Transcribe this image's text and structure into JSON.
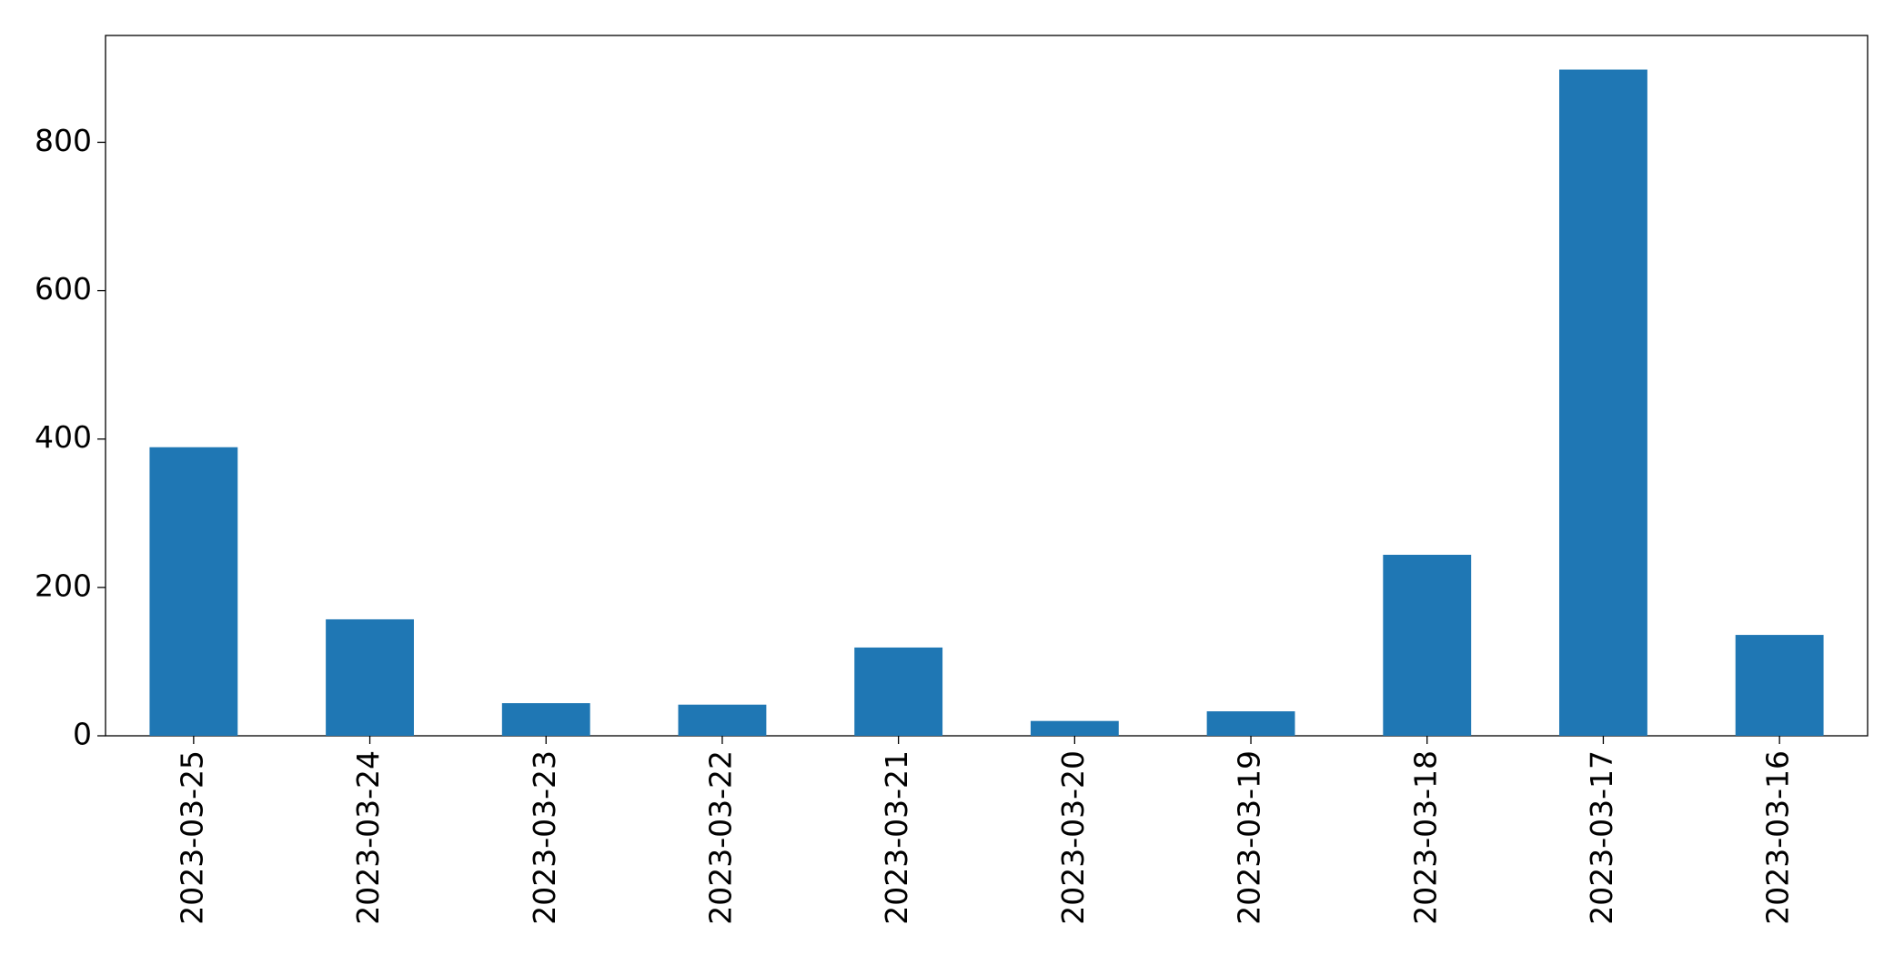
{
  "chart_data": {
    "type": "bar",
    "categories": [
      "2023-03-25",
      "2023-03-24",
      "2023-03-23",
      "2023-03-22",
      "2023-03-21",
      "2023-03-20",
      "2023-03-19",
      "2023-03-18",
      "2023-03-17",
      "2023-03-16"
    ],
    "values": [
      389,
      157,
      44,
      42,
      119,
      20,
      33,
      244,
      898,
      136
    ],
    "color": "#1f77b4",
    "ylim": [
      0,
      944
    ],
    "yticks": [
      0,
      200,
      400,
      600,
      800
    ],
    "grid": false
  }
}
